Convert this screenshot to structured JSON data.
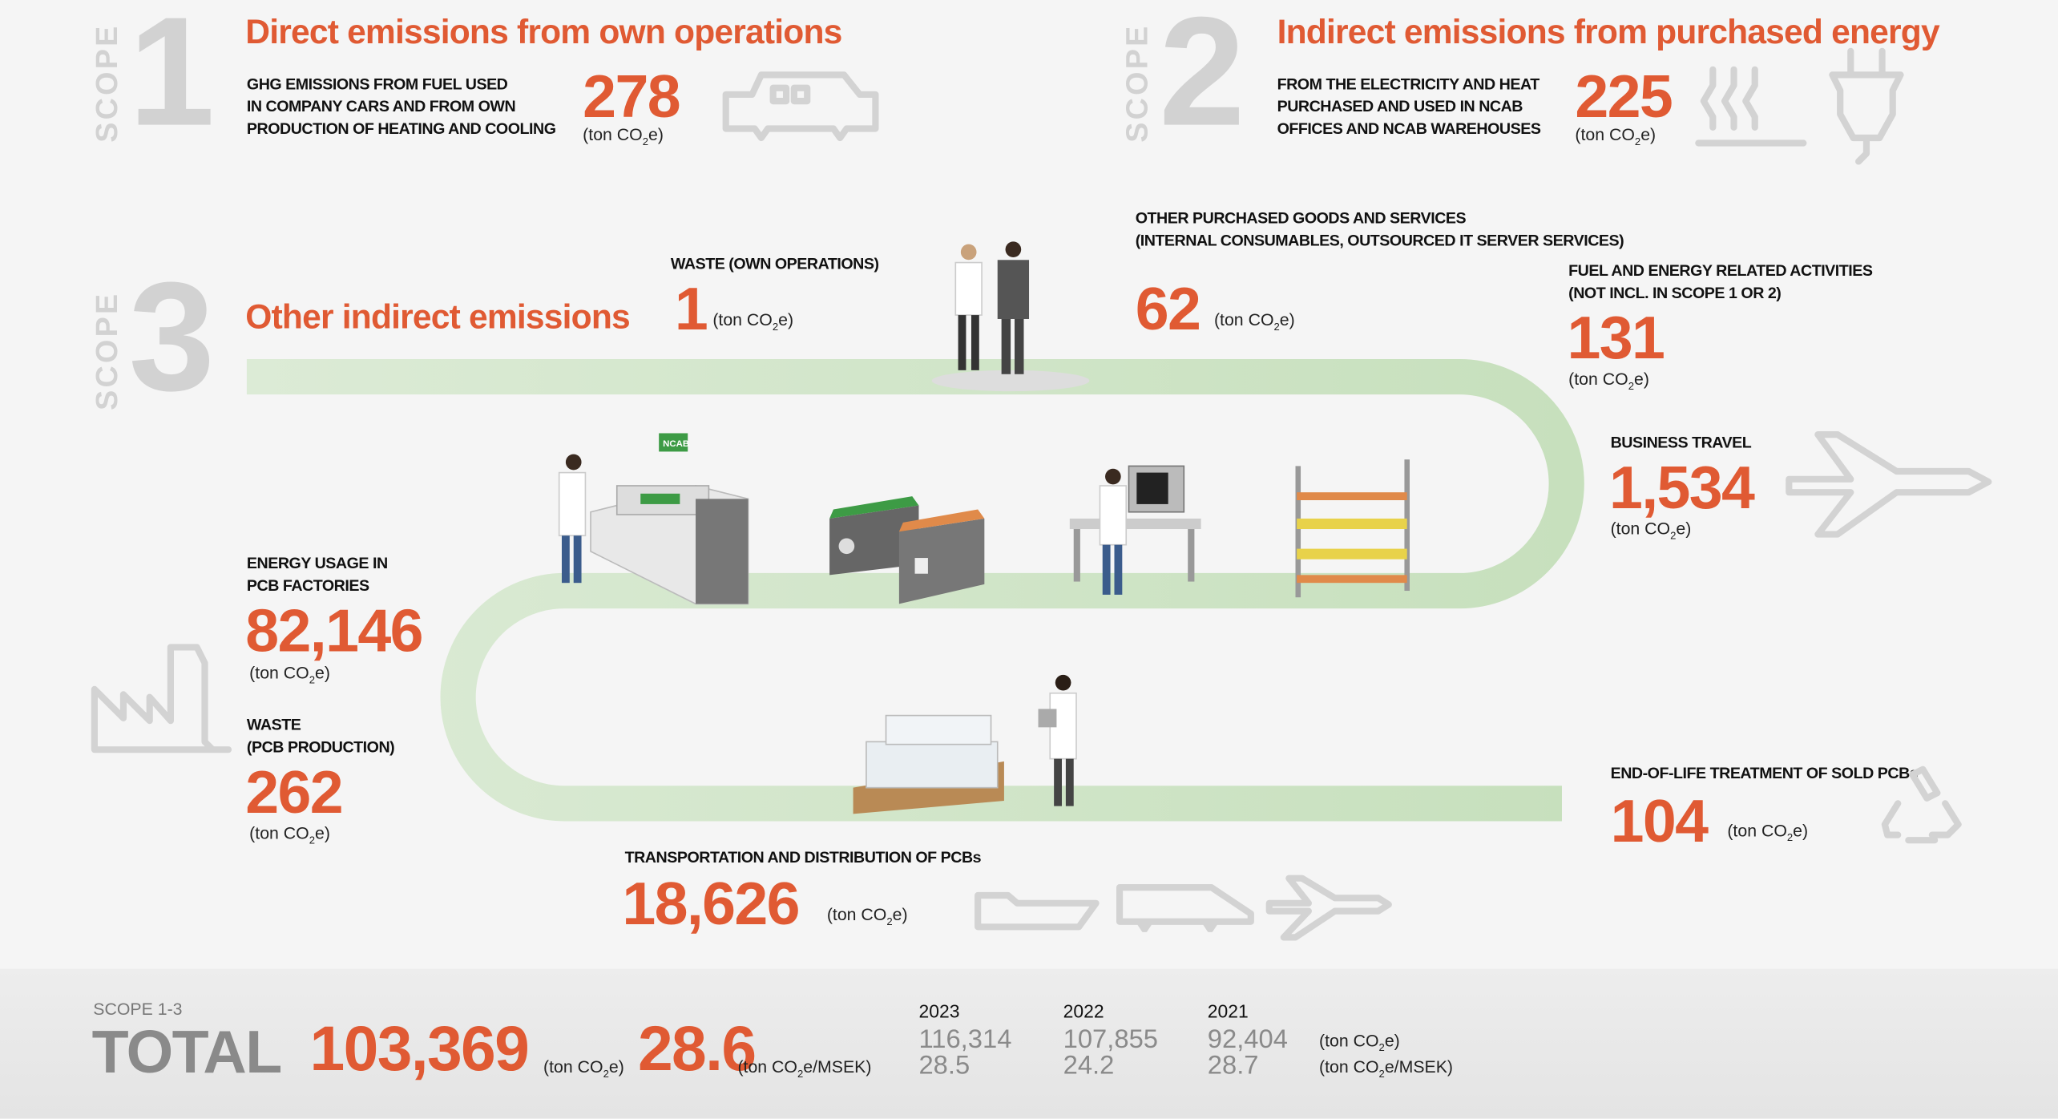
{
  "scope1": {
    "word": "SCOPE",
    "number": "1",
    "title": "Direct emissions from own operations",
    "desc": [
      "GHG EMISSIONS FROM FUEL USED",
      "IN COMPANY CARS AND FROM OWN",
      "PRODUCTION OF HEATING AND COOLING"
    ],
    "value": "278",
    "unit": "(ton CO",
    "unit_sub": "2",
    "unit_end": "e)",
    "icon": "car-icon"
  },
  "scope2": {
    "word": "SCOPE",
    "number": "2",
    "title": "Indirect emissions from purchased energy",
    "desc": [
      "FROM THE ELECTRICITY AND HEAT",
      "PURCHASED AND USED IN NCAB",
      "OFFICES AND NCAB WAREHOUSES"
    ],
    "value": "225",
    "icons": [
      "heat-icon",
      "plug-icon"
    ]
  },
  "scope3": {
    "word": "SCOPE",
    "number": "3",
    "title": "Other indirect emissions",
    "items": {
      "waste_own": {
        "label": [
          "WASTE (OWN OPERATIONS)"
        ],
        "value": "1"
      },
      "purchased": {
        "label": [
          "OTHER PURCHASED GOODS AND SERVICES",
          "(INTERNAL CONSUMABLES, OUTSOURCED IT SERVER SERVICES)"
        ],
        "value": "62"
      },
      "fuel": {
        "label": [
          "FUEL AND ENERGY RELATED ACTIVITIES",
          "(NOT INCL. IN SCOPE 1 OR 2)"
        ],
        "value": "131"
      },
      "travel": {
        "label": [
          "BUSINESS TRAVEL"
        ],
        "value": "1,534",
        "icon": "airplane-icon"
      },
      "energy": {
        "label": [
          "ENERGY USAGE IN",
          "PCB FACTORIES"
        ],
        "value": "82,146",
        "icon": "factory-icon"
      },
      "waste_pcb": {
        "label": [
          "WASTE",
          "(PCB PRODUCTION)"
        ],
        "value": "262"
      },
      "transport": {
        "label": [
          "TRANSPORTATION AND DISTRIBUTION OF PCBs"
        ],
        "value": "18,626",
        "icons": [
          "ship-icon",
          "train-icon",
          "airplane-icon"
        ]
      },
      "eol": {
        "label": [
          "END-OF-LIFE TREATMENT OF SOLD PCBs"
        ],
        "value": "104",
        "icon": "recycle-icon"
      }
    }
  },
  "unit_ton": "(ton CO",
  "unit_sub": "2",
  "unit_e": "e)",
  "unit_msek_end": "e/MSEK)",
  "illustration": {
    "ncab_sign": "NCAB"
  },
  "total": {
    "scope_label": "SCOPE 1-3",
    "label": "TOTAL",
    "value": "103,369",
    "intensity": "28.6",
    "history": [
      {
        "year": "2023",
        "total": "116,314",
        "intensity": "28.5"
      },
      {
        "year": "2022",
        "total": "107,855",
        "intensity": "24.2"
      },
      {
        "year": "2021",
        "total": "92,404",
        "intensity": "28.7"
      }
    ]
  },
  "colors": {
    "accent": "#e05a33",
    "gray": "#d2d2d2",
    "road": "#cfe4c6"
  }
}
